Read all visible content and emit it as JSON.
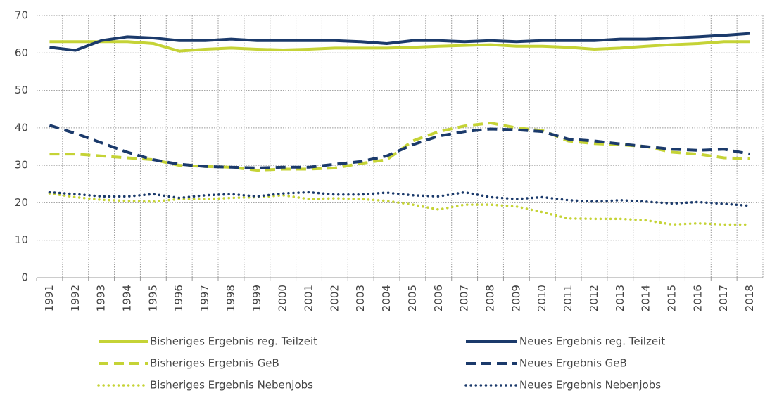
{
  "chart_data": {
    "type": "line",
    "categories": [
      "1991",
      "1992",
      "1993",
      "1994",
      "1995",
      "1996",
      "1997",
      "1998",
      "1999",
      "2000",
      "2001",
      "2002",
      "2003",
      "2004",
      "2005",
      "2006",
      "2007",
      "2008",
      "2009",
      "2010",
      "2011",
      "2012",
      "2013",
      "2014",
      "2015",
      "2016",
      "2017",
      "2018"
    ],
    "ylim": [
      0,
      70
    ],
    "yticks": [
      0,
      10,
      20,
      30,
      40,
      50,
      60,
      70
    ],
    "grid": true,
    "legend": "bottom",
    "series": [
      {
        "name": "Bisheriges Ergebnis reg. Teilzeit",
        "color": "#c5d336",
        "line_style": "solid",
        "values": [
          63,
          63,
          63,
          63,
          62.5,
          60.5,
          61,
          61.3,
          61,
          60.8,
          61,
          61.3,
          61.3,
          61.3,
          61.5,
          61.8,
          62,
          62.2,
          61.8,
          61.8,
          61.5,
          61,
          61.3,
          61.8,
          62.2,
          62.5,
          63,
          63
        ]
      },
      {
        "name": "Neues Ergebnis reg. Teilzeit",
        "color": "#1b3a6b",
        "line_style": "solid",
        "values": [
          61.5,
          60.7,
          63.3,
          64.3,
          64,
          63.3,
          63.3,
          63.7,
          63.3,
          63.3,
          63.3,
          63.3,
          63,
          62.5,
          63.3,
          63.3,
          63,
          63.3,
          63,
          63.3,
          63.3,
          63.3,
          63.7,
          63.7,
          64,
          64.3,
          64.7,
          65.2
        ]
      },
      {
        "name": "Bisheriges Ergebnis GeB",
        "color": "#c5d336",
        "line_style": "dashed",
        "values": [
          33,
          33,
          32.5,
          32,
          31.5,
          30,
          29.7,
          29.5,
          28.7,
          29,
          29,
          29.3,
          30.5,
          31.5,
          36.5,
          39,
          40.5,
          41.3,
          40,
          39.3,
          36.5,
          35.8,
          35.5,
          35,
          33.5,
          33,
          32,
          31.8
        ]
      },
      {
        "name": "Neues Ergebnis GeB",
        "color": "#1b3a6b",
        "line_style": "dashed",
        "values": [
          40.7,
          38.5,
          36,
          33.5,
          31.5,
          30.3,
          29.7,
          29.5,
          29.3,
          29.5,
          29.5,
          30.3,
          31,
          32.5,
          35.5,
          37.8,
          39,
          39.7,
          39.5,
          39,
          37,
          36.5,
          35.7,
          35,
          34.3,
          34,
          34.3,
          33
        ]
      },
      {
        "name": "Bisheriges Ergebnis Nebenjobs",
        "color": "#c5d336",
        "line_style": "dotted",
        "values": [
          22.5,
          21.5,
          20.8,
          20.5,
          20.3,
          21,
          21,
          21.3,
          21.5,
          22,
          21,
          21.2,
          21,
          20.5,
          19.5,
          18.2,
          19.5,
          19.5,
          19,
          17.5,
          15.8,
          15.7,
          15.7,
          15.3,
          14.2,
          14.5,
          14.2,
          14.2
        ]
      },
      {
        "name": "Neues Ergebnis Nebenjobs",
        "color": "#1b3a6b",
        "line_style": "dotted",
        "values": [
          22.8,
          22.3,
          21.7,
          21.7,
          22.3,
          21.3,
          22,
          22.3,
          21.7,
          22.5,
          22.8,
          22.2,
          22.2,
          22.7,
          22,
          21.7,
          22.8,
          21.5,
          21,
          21.5,
          20.7,
          20.3,
          20.7,
          20.3,
          19.8,
          20.2,
          19.7,
          19.2
        ]
      }
    ]
  }
}
